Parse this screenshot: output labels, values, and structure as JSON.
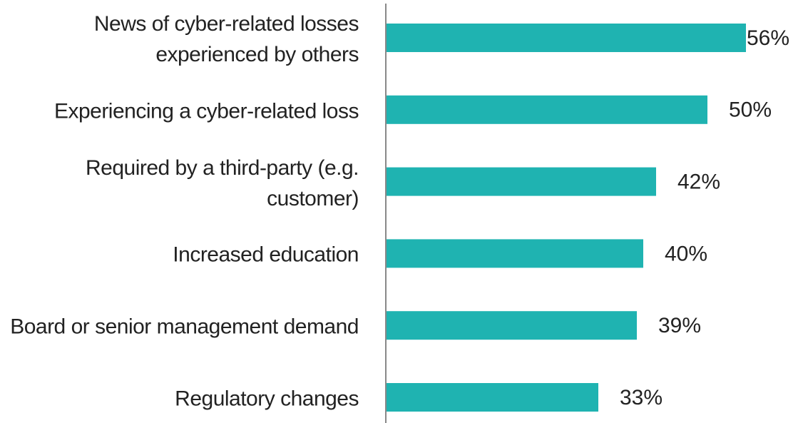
{
  "chart_data": {
    "type": "barh",
    "categories": [
      "News of cyber-related losses experienced by others",
      "Experiencing a cyber-related loss",
      "Required by a third-party (e.g. customer)",
      "Increased education",
      "Board or senior management demand",
      "Regulatory changes"
    ],
    "values": [
      56,
      50,
      42,
      40,
      39,
      33
    ],
    "value_labels": [
      "56%",
      "50%",
      "42%",
      "40%",
      "39%",
      "33%"
    ],
    "color": "#1fb3b1",
    "xlim": [
      0,
      60
    ]
  }
}
